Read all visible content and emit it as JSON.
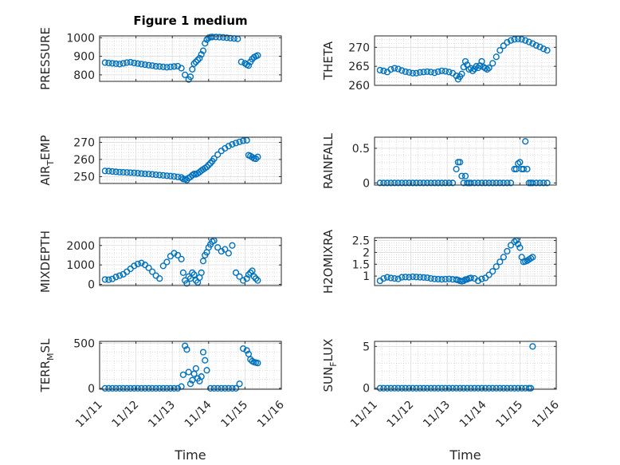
{
  "figure_title": "Figure 1 medium",
  "colors": {
    "marker": "#0072BD",
    "axis": "#262626",
    "grid": "#dcdcdc"
  },
  "chart_data": [
    {
      "type": "scatter",
      "ylabel": "PRESSURE",
      "ylabel_sub": "",
      "ylabel_tail": "",
      "xlabel": "",
      "xlim": [
        0,
        5
      ],
      "ylim": [
        765,
        1010
      ],
      "yticks": [
        800,
        900,
        1000
      ],
      "ytick_labels": [
        "800",
        "900",
        "1000"
      ],
      "title": "Figure 1 medium",
      "x": [
        0.15,
        0.25,
        0.35,
        0.45,
        0.55,
        0.65,
        0.75,
        0.85,
        0.95,
        1.05,
        1.15,
        1.25,
        1.35,
        1.45,
        1.55,
        1.65,
        1.75,
        1.85,
        1.95,
        2.05,
        2.15,
        2.25,
        2.35,
        2.45,
        2.5,
        2.55,
        2.6,
        2.65,
        2.7,
        2.75,
        2.8,
        2.85,
        2.9,
        2.95,
        3.0,
        3.05,
        3.1,
        3.2,
        3.3,
        3.4,
        3.5,
        3.6,
        3.7,
        3.8,
        3.9,
        4.0,
        4.05,
        4.1,
        4.15,
        4.2,
        4.25,
        4.3,
        4.35
      ],
      "y": [
        866,
        864,
        862,
        860,
        858,
        862,
        866,
        868,
        864,
        861,
        858,
        855,
        852,
        850,
        846,
        845,
        843,
        841,
        843,
        845,
        847,
        836,
        800,
        775,
        790,
        830,
        860,
        870,
        880,
        890,
        910,
        930,
        970,
        990,
        1000,
        1003,
        1004,
        1004,
        1003,
        1002,
        1000,
        998,
        996,
        994,
        870,
        862,
        855,
        850,
        870,
        885,
        895,
        900,
        905
      ]
    },
    {
      "type": "scatter",
      "ylabel": "THETA",
      "ylabel_sub": "",
      "ylabel_tail": "",
      "xlabel": "",
      "xlim": [
        0,
        5
      ],
      "ylim": [
        260,
        273
      ],
      "yticks": [
        260,
        265,
        270
      ],
      "ytick_labels": [
        "260",
        "265",
        "270"
      ],
      "title": "",
      "x": [
        0.15,
        0.25,
        0.35,
        0.45,
        0.55,
        0.65,
        0.75,
        0.85,
        0.95,
        1.05,
        1.15,
        1.25,
        1.35,
        1.45,
        1.55,
        1.65,
        1.75,
        1.85,
        1.95,
        2.05,
        2.15,
        2.25,
        2.3,
        2.35,
        2.4,
        2.45,
        2.5,
        2.55,
        2.6,
        2.65,
        2.7,
        2.75,
        2.8,
        2.85,
        2.9,
        2.95,
        3.0,
        3.05,
        3.1,
        3.15,
        3.25,
        3.35,
        3.45,
        3.55,
        3.65,
        3.75,
        3.85,
        3.95,
        4.05,
        4.15,
        4.25,
        4.35,
        4.45,
        4.55,
        4.65,
        4.75
      ],
      "y": [
        264,
        263.8,
        263.5,
        264.2,
        264.5,
        264.3,
        263.9,
        263.6,
        263.4,
        263.2,
        263.2,
        263.4,
        263.5,
        263.6,
        263.5,
        263.3,
        263.6,
        263.8,
        263.7,
        263.5,
        263.2,
        262.5,
        261.6,
        262.3,
        263,
        264.8,
        266.3,
        265.4,
        264.2,
        264.5,
        263.8,
        264.3,
        265,
        264.6,
        265.2,
        266.3,
        264.8,
        264.5,
        264.2,
        264.6,
        265.8,
        267.5,
        269.2,
        270.4,
        271.3,
        271.8,
        272.1,
        272.2,
        272.1,
        271.8,
        271.4,
        271,
        270.5,
        270.1,
        269.6,
        269.2
      ]
    },
    {
      "type": "scatter",
      "ylabel": "AIR",
      "ylabel_sub": "T",
      "ylabel_tail": "EMP",
      "xlabel": "",
      "xlim": [
        0,
        5
      ],
      "ylim": [
        246,
        273
      ],
      "yticks": [
        250,
        260,
        270
      ],
      "ytick_labels": [
        "250",
        "260",
        "270"
      ],
      "title": "",
      "x": [
        0.15,
        0.25,
        0.35,
        0.45,
        0.55,
        0.65,
        0.75,
        0.85,
        0.95,
        1.05,
        1.15,
        1.25,
        1.35,
        1.45,
        1.55,
        1.65,
        1.75,
        1.85,
        1.95,
        2.05,
        2.15,
        2.25,
        2.3,
        2.35,
        2.4,
        2.45,
        2.5,
        2.55,
        2.6,
        2.65,
        2.7,
        2.75,
        2.8,
        2.85,
        2.9,
        2.95,
        3.0,
        3.05,
        3.1,
        3.15,
        3.25,
        3.35,
        3.45,
        3.55,
        3.65,
        3.75,
        3.85,
        3.95,
        4.05,
        4.1,
        4.15,
        4.2,
        4.25,
        4.3,
        4.35
      ],
      "y": [
        253.3,
        253.2,
        253,
        252.8,
        252.6,
        252.5,
        252.4,
        252.3,
        252.2,
        252,
        251.8,
        251.6,
        251.5,
        251.3,
        251.1,
        250.9,
        250.7,
        250.5,
        250.3,
        250.1,
        249.8,
        249.5,
        248.6,
        248.5,
        248,
        249.2,
        249.8,
        250.8,
        251.6,
        251.3,
        251.9,
        252.6,
        253.5,
        254.2,
        254.9,
        255.6,
        256.8,
        257.8,
        259,
        260.5,
        262.8,
        265,
        266.5,
        267.8,
        268.8,
        269.6,
        270.3,
        270.9,
        271.2,
        262.5,
        262,
        261.3,
        260.6,
        260.4,
        261.5
      ]
    },
    {
      "type": "scatter",
      "ylabel": "RAINFALL",
      "ylabel_sub": "",
      "ylabel_tail": "",
      "xlabel": "",
      "xlim": [
        0,
        5
      ],
      "ylim": [
        -0.03,
        0.66
      ],
      "yticks": [
        0,
        0.5
      ],
      "ytick_labels": [
        "0",
        "0.5"
      ],
      "title": "",
      "x": [
        0.15,
        0.25,
        0.35,
        0.45,
        0.55,
        0.65,
        0.75,
        0.85,
        0.95,
        1.05,
        1.15,
        1.25,
        1.35,
        1.45,
        1.55,
        1.65,
        1.75,
        1.85,
        1.95,
        2.05,
        2.15,
        2.25,
        2.3,
        2.35,
        2.4,
        2.45,
        2.5,
        2.55,
        2.6,
        2.65,
        2.75,
        2.85,
        2.95,
        3.05,
        3.15,
        3.25,
        3.35,
        3.45,
        3.55,
        3.65,
        3.75,
        3.85,
        3.9,
        3.95,
        4.0,
        4.05,
        4.1,
        4.15,
        4.2,
        4.25,
        4.3,
        4.35,
        4.45,
        4.55,
        4.65,
        4.75
      ],
      "y": [
        0,
        0,
        0,
        0,
        0,
        0,
        0,
        0,
        0,
        0,
        0,
        0,
        0,
        0,
        0,
        0,
        0,
        0,
        0,
        0,
        0,
        0.2,
        0.3,
        0.3,
        0.1,
        0,
        0.1,
        0,
        0,
        0,
        0,
        0,
        0,
        0,
        0,
        0,
        0,
        0,
        0,
        0,
        0,
        0.2,
        0.2,
        0.28,
        0.3,
        0.2,
        0.2,
        0.6,
        0.2,
        0,
        0,
        0,
        0,
        0,
        0,
        0
      ]
    },
    {
      "type": "scatter",
      "ylabel": "MIXDEPTH",
      "ylabel_sub": "",
      "ylabel_tail": "",
      "xlabel": "",
      "xlim": [
        0,
        5
      ],
      "ylim": [
        -60,
        2400
      ],
      "yticks": [
        0,
        1000,
        2000
      ],
      "ytick_labels": [
        "0",
        "1000",
        "2000"
      ],
      "title": "",
      "x": [
        0.15,
        0.25,
        0.35,
        0.45,
        0.55,
        0.65,
        0.75,
        0.85,
        0.95,
        1.05,
        1.15,
        1.25,
        1.35,
        1.45,
        1.55,
        1.65,
        1.75,
        1.85,
        1.95,
        2.05,
        2.15,
        2.25,
        2.3,
        2.35,
        2.4,
        2.45,
        2.5,
        2.55,
        2.6,
        2.65,
        2.7,
        2.75,
        2.8,
        2.85,
        2.9,
        2.95,
        3.0,
        3.05,
        3.1,
        3.15,
        3.25,
        3.35,
        3.45,
        3.55,
        3.65,
        3.75,
        3.85,
        3.95,
        4.05,
        4.1,
        4.15,
        4.2,
        4.25,
        4.3,
        4.35
      ],
      "y": [
        250,
        240,
        280,
        380,
        450,
        520,
        650,
        800,
        950,
        1050,
        1100,
        1000,
        850,
        650,
        450,
        300,
        950,
        1150,
        1450,
        1600,
        1500,
        1300,
        600,
        200,
        50,
        400,
        300,
        600,
        500,
        200,
        100,
        350,
        600,
        1200,
        1500,
        1650,
        1900,
        2050,
        2200,
        2250,
        1900,
        1700,
        1800,
        1600,
        2000,
        600,
        400,
        200,
        300,
        500,
        600,
        700,
        400,
        300,
        200
      ]
    },
    {
      "type": "scatter",
      "ylabel": "H2OMIXRA",
      "ylabel_sub": "",
      "ylabel_tail": "",
      "xlabel": "",
      "xlim": [
        0,
        5
      ],
      "ylim": [
        0.6,
        2.62
      ],
      "yticks": [
        1,
        1.5,
        2,
        2.5
      ],
      "ytick_labels": [
        "1",
        "1.5",
        "2",
        "2.5"
      ],
      "title": "",
      "x": [
        0.15,
        0.25,
        0.35,
        0.45,
        0.55,
        0.65,
        0.75,
        0.85,
        0.95,
        1.05,
        1.15,
        1.25,
        1.35,
        1.45,
        1.55,
        1.65,
        1.75,
        1.85,
        1.95,
        2.05,
        2.15,
        2.25,
        2.3,
        2.35,
        2.4,
        2.45,
        2.5,
        2.55,
        2.6,
        2.65,
        2.75,
        2.85,
        2.95,
        3.05,
        3.15,
        3.25,
        3.35,
        3.45,
        3.55,
        3.65,
        3.75,
        3.85,
        3.9,
        3.95,
        4.0,
        4.05,
        4.1,
        4.15,
        4.2,
        4.25,
        4.3,
        4.35
      ],
      "y": [
        0.8,
        0.9,
        0.95,
        0.92,
        0.9,
        0.88,
        0.95,
        0.96,
        0.95,
        0.97,
        0.96,
        0.95,
        0.94,
        0.93,
        0.9,
        0.88,
        0.87,
        0.86,
        0.87,
        0.88,
        0.86,
        0.85,
        0.83,
        0.8,
        0.78,
        0.8,
        0.85,
        0.86,
        0.9,
        0.92,
        0.9,
        0.8,
        0.88,
        0.92,
        1.05,
        1.2,
        1.4,
        1.6,
        1.8,
        2.05,
        2.3,
        2.45,
        2.5,
        2.35,
        2.2,
        1.8,
        1.6,
        1.62,
        1.65,
        1.7,
        1.75,
        1.8
      ]
    },
    {
      "type": "scatter",
      "ylabel": "TERR",
      "ylabel_sub": "M",
      "ylabel_tail": "SL",
      "xlabel": "Time",
      "xlim": [
        0,
        5
      ],
      "ylim": [
        -10,
        520
      ],
      "yticks": [
        0,
        500
      ],
      "ytick_labels": [
        "0",
        "500"
      ],
      "title": "",
      "x": [
        0.15,
        0.25,
        0.35,
        0.45,
        0.55,
        0.65,
        0.75,
        0.85,
        0.95,
        1.05,
        1.15,
        1.25,
        1.35,
        1.45,
        1.55,
        1.65,
        1.75,
        1.85,
        1.95,
        2.05,
        2.15,
        2.25,
        2.3,
        2.35,
        2.4,
        2.45,
        2.5,
        2.55,
        2.6,
        2.65,
        2.7,
        2.75,
        2.8,
        2.85,
        2.9,
        2.95,
        3.05,
        3.15,
        3.25,
        3.35,
        3.45,
        3.55,
        3.65,
        3.75,
        3.85,
        3.95,
        4.05,
        4.1,
        4.15,
        4.2,
        4.25,
        4.3,
        4.35
      ],
      "y": [
        0,
        0,
        0,
        0,
        0,
        0,
        0,
        0,
        0,
        0,
        0,
        0,
        0,
        0,
        0,
        0,
        0,
        0,
        0,
        0,
        0,
        20,
        150,
        470,
        430,
        180,
        50,
        90,
        160,
        220,
        110,
        80,
        130,
        400,
        310,
        200,
        0,
        0,
        0,
        0,
        0,
        0,
        0,
        0,
        50,
        440,
        420,
        380,
        320,
        300,
        290,
        285,
        280
      ],
      "xticks": [
        0,
        1,
        2,
        3,
        4,
        5
      ],
      "xtick_labels": [
        "11/11",
        "11/12",
        "11/13",
        "11/14",
        "11/15",
        "11/16"
      ]
    },
    {
      "type": "scatter",
      "ylabel": "SUN",
      "ylabel_sub": "F",
      "ylabel_tail": "LUX",
      "xlabel": "Time",
      "xlim": [
        0,
        5
      ],
      "ylim": [
        -0.12,
        5.6
      ],
      "yticks": [
        0,
        5
      ],
      "ytick_labels": [
        "0",
        "5"
      ],
      "title": "",
      "x": [
        0.15,
        0.25,
        0.35,
        0.45,
        0.55,
        0.65,
        0.75,
        0.85,
        0.95,
        1.05,
        1.15,
        1.25,
        1.35,
        1.45,
        1.55,
        1.65,
        1.75,
        1.85,
        1.95,
        2.05,
        2.15,
        2.25,
        2.35,
        2.45,
        2.55,
        2.65,
        2.75,
        2.85,
        2.95,
        3.05,
        3.15,
        3.25,
        3.35,
        3.45,
        3.55,
        3.65,
        3.75,
        3.85,
        3.95,
        4.05,
        4.15,
        4.25,
        4.3,
        4.35
      ],
      "y": [
        0,
        0,
        0,
        0,
        0,
        0,
        0,
        0,
        0,
        0,
        0,
        0,
        0,
        0,
        0,
        0,
        0,
        0,
        0,
        0,
        0,
        0,
        0,
        0,
        0,
        0,
        0,
        0,
        0,
        0,
        0,
        0,
        0,
        0,
        0,
        0,
        0,
        0,
        0,
        0,
        0,
        0,
        0,
        5
      ],
      "xticks": [
        0,
        1,
        2,
        3,
        4,
        5
      ],
      "xtick_labels": [
        "11/11",
        "11/12",
        "11/13",
        "11/14",
        "11/15",
        "11/16"
      ]
    }
  ]
}
